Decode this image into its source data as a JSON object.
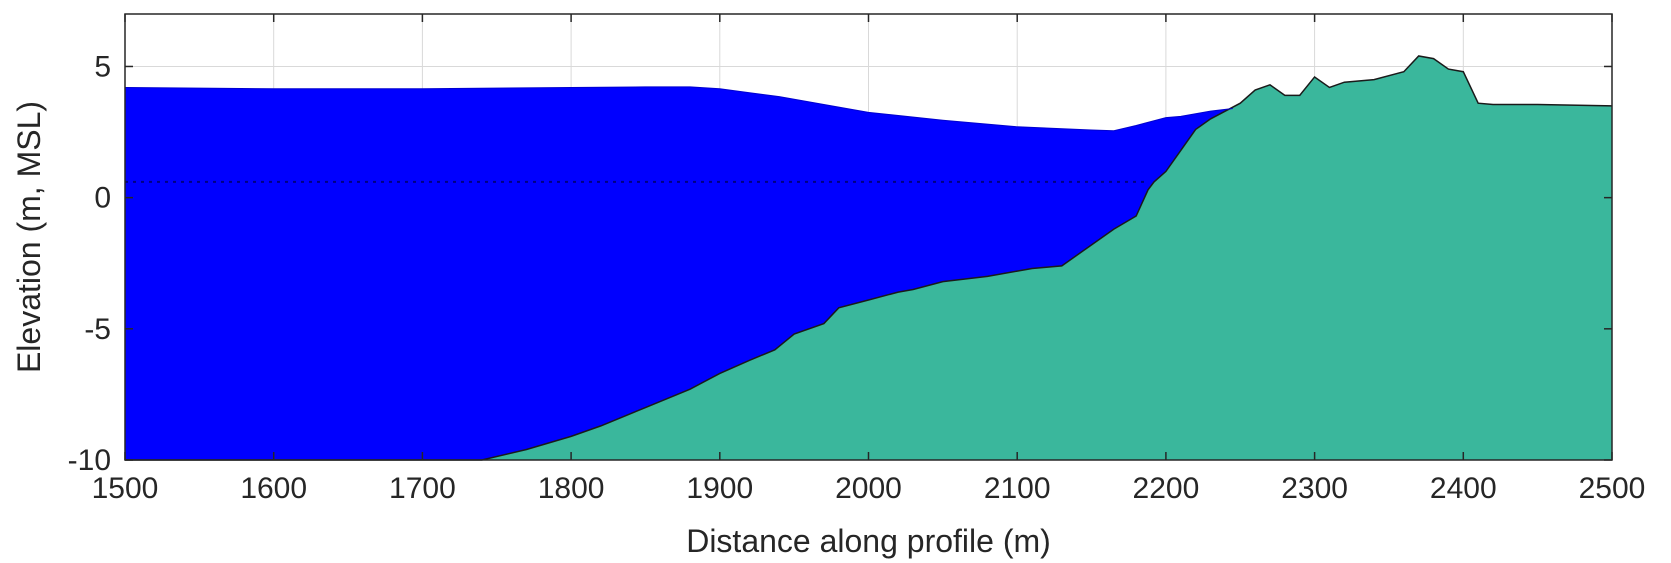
{
  "chart_data": {
    "type": "area",
    "xlabel": "Distance along profile (m)",
    "ylabel": "Elevation (m, MSL)",
    "xlim": [
      1500,
      2500
    ],
    "ylim": [
      -10,
      7
    ],
    "xticks": [
      1500,
      1600,
      1700,
      1800,
      1900,
      2000,
      2100,
      2200,
      2300,
      2400,
      2500
    ],
    "yticks": [
      -10,
      -5,
      0,
      5
    ],
    "grid": true,
    "reference_line_y": 0.6,
    "colors": {
      "water": "#0000ff",
      "ground": "#3ab79c",
      "outline": "#1a1a1a",
      "grid": "#d9d9d9",
      "reference": "#000080"
    },
    "series": [
      {
        "role": "water_surface",
        "x": [
          1500,
          1600,
          1700,
          1800,
          1850,
          1880,
          1900,
          1920,
          1940,
          1960,
          1980,
          2000,
          2050,
          2100,
          2150,
          2165,
          2180,
          2200,
          2210,
          2220,
          2230,
          2245
        ],
        "y": [
          4.2,
          4.15,
          4.15,
          4.2,
          4.22,
          4.22,
          4.15,
          4.0,
          3.85,
          3.65,
          3.45,
          3.25,
          2.95,
          2.7,
          2.58,
          2.55,
          2.75,
          3.05,
          3.1,
          3.2,
          3.3,
          3.4
        ]
      },
      {
        "role": "ground",
        "x": [
          1500,
          1740,
          1770,
          1800,
          1820,
          1850,
          1880,
          1900,
          1920,
          1937,
          1950,
          1970,
          1980,
          2000,
          2020,
          2030,
          2050,
          2080,
          2100,
          2110,
          2130,
          2150,
          2165,
          2180,
          2188,
          2192,
          2200,
          2210,
          2220,
          2230,
          2240,
          2250,
          2260,
          2270,
          2280,
          2290,
          2300,
          2310,
          2320,
          2340,
          2360,
          2370,
          2380,
          2390,
          2400,
          2410,
          2420,
          2450,
          2500
        ],
        "y": [
          -10,
          -10,
          -9.6,
          -9.1,
          -8.7,
          -8.0,
          -7.3,
          -6.7,
          -6.2,
          -5.8,
          -5.2,
          -4.8,
          -4.2,
          -3.9,
          -3.6,
          -3.5,
          -3.2,
          -3.0,
          -2.8,
          -2.7,
          -2.6,
          -1.8,
          -1.2,
          -0.7,
          0.3,
          0.6,
          1.0,
          1.8,
          2.6,
          3.0,
          3.3,
          3.6,
          4.1,
          4.3,
          3.9,
          3.9,
          4.6,
          4.2,
          4.4,
          4.5,
          4.8,
          5.4,
          5.3,
          4.9,
          4.8,
          3.6,
          3.55,
          3.55,
          3.5
        ]
      }
    ]
  }
}
